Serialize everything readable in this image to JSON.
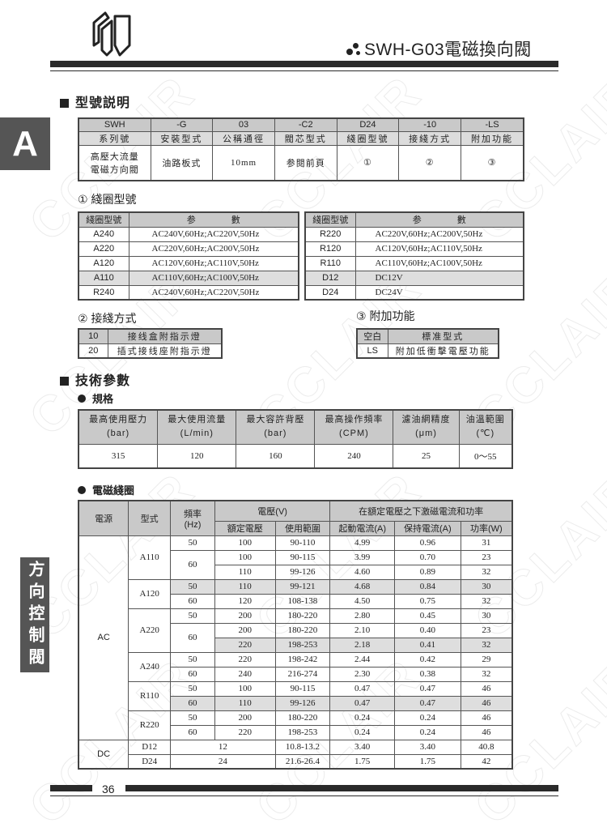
{
  "header": {
    "title": "SWH-G03電磁換向閥",
    "logo_icon": "n-logo-icon"
  },
  "watermark": "CCLAIR",
  "side_tabs": {
    "letter": "A",
    "category": "方向控制閥"
  },
  "model": {
    "heading": "型號説明",
    "codes": [
      "SWH",
      "-G",
      "03",
      "-C2",
      "D24",
      "-10",
      "-LS"
    ],
    "labels": [
      "系列號",
      "安裝型式",
      "公稱通徑",
      "閥芯型式",
      "綫圈型號",
      "接綫方式",
      "附加功能"
    ],
    "values": [
      "高壓大流量\n電磁方向閥",
      "油路板式",
      "10mm",
      "参閱前頁",
      "①",
      "②",
      "③"
    ]
  },
  "coil": {
    "heading": "① 綫圈型號",
    "col_model": "綫圈型號",
    "col_param": "参　　　　數",
    "left": [
      [
        "A240",
        "AC240V,60Hz;AC220V,50Hz"
      ],
      [
        "A220",
        "AC220V,60Hz;AC200V,50Hz"
      ],
      [
        "A120",
        "AC120V,60Hz;AC110V,50Hz"
      ],
      [
        "A110",
        "AC110V,60Hz;AC100V,50Hz"
      ],
      [
        "R240",
        "AC240V,60Hz;AC220V,50Hz"
      ]
    ],
    "right": [
      [
        "R220",
        "AC220V,60Hz;AC200V,50Hz"
      ],
      [
        "R120",
        "AC120V,60Hz;AC110V,50Hz"
      ],
      [
        "R110",
        "AC110V,60Hz;AC100V,50Hz"
      ],
      [
        "D12",
        "DC12V"
      ],
      [
        "D24",
        "DC24V"
      ]
    ],
    "highlight_row": 3
  },
  "wiring": {
    "heading": "② 接綫方式",
    "rows": [
      [
        "10",
        "接线盒附指示燈"
      ],
      [
        "20",
        "插式接线座附指示燈"
      ]
    ]
  },
  "extra": {
    "heading": "③ 附加功能",
    "rows": [
      [
        "空白",
        "標准型式"
      ],
      [
        "LS",
        "附加低衝擊電壓功能"
      ]
    ]
  },
  "tech": {
    "heading": "技術參數",
    "spec_heading": "規格",
    "elec_heading": "電磁綫圈"
  },
  "spec": {
    "headers": [
      [
        "最高使用壓力",
        "(bar)"
      ],
      [
        "最大使用流量",
        "(L/min)"
      ],
      [
        "最大容許背壓",
        "(bar)"
      ],
      [
        "最高操作頻率",
        "(CPM)"
      ],
      [
        "濾油網精度",
        "(μm)"
      ],
      [
        "油溫範圍",
        "(℃)"
      ]
    ],
    "values": [
      "315",
      "120",
      "160",
      "240",
      "25",
      "0～55"
    ]
  },
  "elec": {
    "headers": {
      "power": "電源",
      "model": "型式",
      "freq": "頻率",
      "freq_unit": "(Hz)",
      "voltage": "電壓(V)",
      "rated": "額定電壓",
      "range": "使用範圍",
      "group": "在額定電壓之下激磁電流和功率",
      "start": "起動電流(A)",
      "hold": "保持電流(A)",
      "watt": "功率(W)"
    },
    "groups": [
      {
        "power": "AC",
        "models": [
          {
            "model": "A110",
            "freqs": [
              {
                "hz": "50",
                "rows": [
                  [
                    "100",
                    "90-110",
                    "4.99",
                    "0.96",
                    "31"
                  ]
                ]
              },
              {
                "hz": "60",
                "rows": [
                  [
                    "100",
                    "90-115",
                    "3.99",
                    "0.70",
                    "23"
                  ],
                  [
                    "110",
                    "99-126",
                    "4.60",
                    "0.89",
                    "32"
                  ]
                ]
              }
            ]
          },
          {
            "model": "A120",
            "freqs": [
              {
                "hz": "50",
                "hl": true,
                "rows": [
                  [
                    "110",
                    "99-121",
                    "4.68",
                    "0.84",
                    "30"
                  ]
                ]
              },
              {
                "hz": "60",
                "rows": [
                  [
                    "120",
                    "108-138",
                    "4.50",
                    "0.75",
                    "32"
                  ]
                ]
              }
            ]
          },
          {
            "model": "A220",
            "freqs": [
              {
                "hz": "50",
                "rows": [
                  [
                    "200",
                    "180-220",
                    "2.80",
                    "0.45",
                    "30"
                  ]
                ]
              },
              {
                "hz": "60",
                "rows": [
                  [
                    "200",
                    "180-220",
                    "2.10",
                    "0.40",
                    "23"
                  ],
                  [
                    "220",
                    "198-253",
                    "2.18",
                    "0.41",
                    "32"
                  ]
                ],
                "hl_row": 1
              }
            ]
          },
          {
            "model": "A240",
            "freqs": [
              {
                "hz": "50",
                "rows": [
                  [
                    "220",
                    "198-242",
                    "2.44",
                    "0.42",
                    "29"
                  ]
                ]
              },
              {
                "hz": "60",
                "rows": [
                  [
                    "240",
                    "216-274",
                    "2.30",
                    "0.38",
                    "32"
                  ]
                ]
              }
            ]
          },
          {
            "model": "R110",
            "freqs": [
              {
                "hz": "50",
                "rows": [
                  [
                    "100",
                    "90-115",
                    "0.47",
                    "0.47",
                    "46"
                  ]
                ]
              },
              {
                "hz": "60",
                "hl": true,
                "rows": [
                  [
                    "110",
                    "99-126",
                    "0.47",
                    "0.47",
                    "46"
                  ]
                ]
              }
            ]
          },
          {
            "model": "R220",
            "freqs": [
              {
                "hz": "50",
                "rows": [
                  [
                    "200",
                    "180-220",
                    "0.24",
                    "0.24",
                    "46"
                  ]
                ]
              },
              {
                "hz": "60",
                "rows": [
                  [
                    "220",
                    "198-253",
                    "0.24",
                    "0.24",
                    "46"
                  ]
                ]
              }
            ]
          }
        ]
      },
      {
        "power": "DC",
        "dc": [
          [
            "D12",
            "12",
            "10.8-13.2",
            "3.40",
            "3.40",
            "40.8"
          ],
          [
            "D24",
            "24",
            "21.6-26.4",
            "1.75",
            "1.75",
            "42"
          ]
        ]
      }
    ]
  },
  "footer": {
    "page": "36"
  }
}
